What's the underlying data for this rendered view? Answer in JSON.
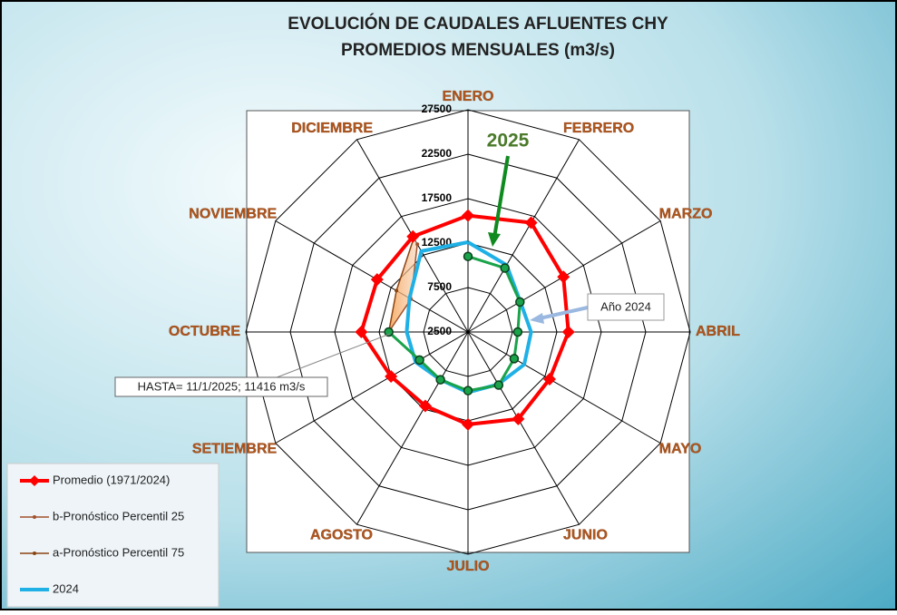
{
  "chart_data": {
    "type": "radar",
    "title": "EVOLUCIÓN DE CAUDALES AFLUENTES CHY",
    "subtitle": "PROMEDIOS MENSUALES (m3/s)",
    "categories": [
      "ENERO",
      "FEBRERO",
      "MARZO",
      "ABRIL",
      "MAYO",
      "JUNIO",
      "JULIO",
      "AGOSTO",
      "SETIEMBRE",
      "OCTUBRE",
      "NOVIEMBRE",
      "DICIEMBRE"
    ],
    "ylim": [
      2500,
      27500
    ],
    "yticks": [
      2500,
      7500,
      12500,
      17500,
      22500,
      27500
    ],
    "grid": true,
    "legend": "bottom-left",
    "series": [
      {
        "name": "Promedio (1971/2024)",
        "color": "#ff0000",
        "marker": "diamond",
        "values": [
          15600,
          16700,
          14900,
          13800,
          13100,
          13800,
          12900,
          12100,
          12500,
          14500,
          14300,
          14900
        ]
      },
      {
        "name": "b-Pronóstico Percentil 25",
        "color": "#a0522d",
        "marker": "dot",
        "values": [
          null,
          null,
          null,
          null,
          null,
          null,
          null,
          null,
          null,
          11416,
          9900,
          13900
        ]
      },
      {
        "name": "a-Pronóstico Percentil 75",
        "color": "#8b4513",
        "marker": "dot",
        "values": [
          null,
          null,
          null,
          null,
          null,
          null,
          null,
          null,
          null,
          11416,
          11800,
          14700
        ]
      },
      {
        "name": "2024",
        "color": "#1fb0e6",
        "marker": "none",
        "values": [
          12600,
          11200,
          9300,
          9600,
          9800,
          9300,
          9300,
          8700,
          9300,
          9400,
          10100,
          13000
        ]
      },
      {
        "name": "2025",
        "color": "#1aa34a",
        "marker": "circle",
        "legend": false,
        "values": [
          11000,
          10800,
          9250,
          8100,
          8500,
          9400,
          9100,
          8700,
          8800,
          11416,
          null,
          null
        ]
      }
    ],
    "annotations": [
      "Año 2024",
      "HASTA= 11/1/2025; 11416 m3/s"
    ]
  }
}
